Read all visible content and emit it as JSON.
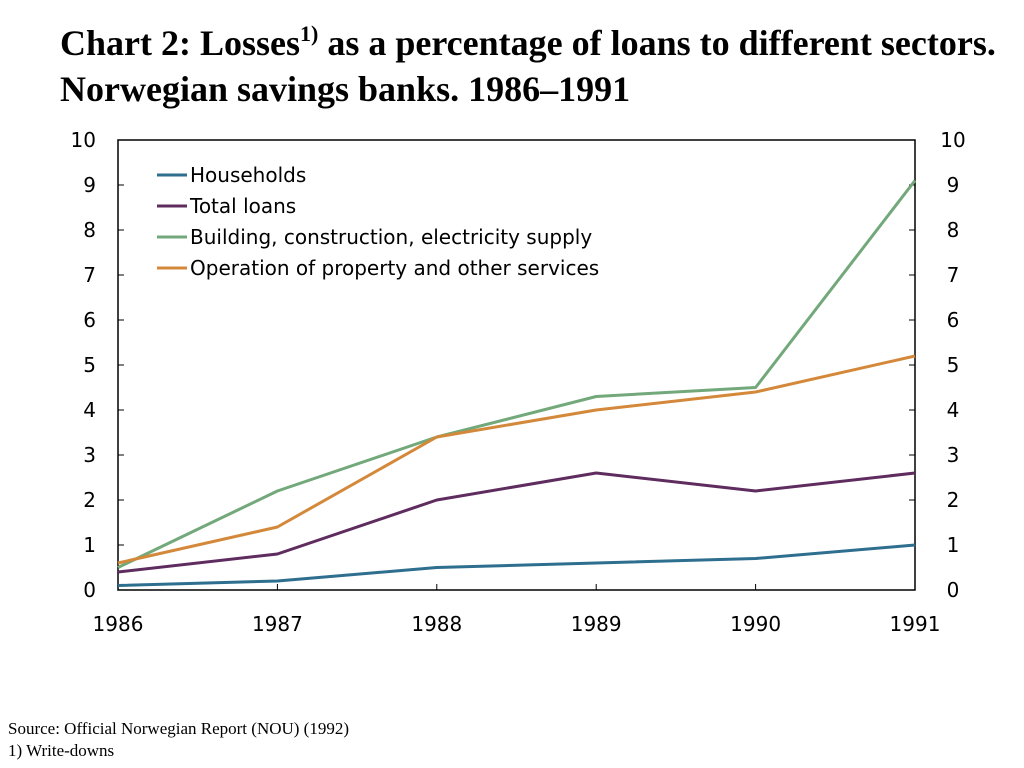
{
  "title": {
    "prefix": "Chart 2: Losses",
    "superscript": "1)",
    "rest": " as a percentage of loans to different sectors. Norwegian savings banks. 1986–1991"
  },
  "footer": {
    "source": "Source: Official Norwegian Report (NOU) (1992)",
    "note": "1) Write-downs"
  },
  "chart_data": {
    "type": "line",
    "x": [
      "1986",
      "1987",
      "1988",
      "1989",
      "1990",
      "1991"
    ],
    "ylim": [
      0,
      10
    ],
    "yticks": [
      0,
      1,
      2,
      3,
      4,
      5,
      6,
      7,
      8,
      9,
      10
    ],
    "secondary_yaxis": true,
    "grid": false,
    "legend_position": "top-left",
    "series": [
      {
        "name": "Households",
        "color": "#2e6e8e",
        "values": [
          0.1,
          0.2,
          0.5,
          0.6,
          0.7,
          1.0
        ]
      },
      {
        "name": "Total loans",
        "color": "#5e2c5e",
        "values": [
          0.4,
          0.8,
          2.0,
          2.6,
          2.2,
          2.6
        ]
      },
      {
        "name": "Building, construction, electricity supply",
        "color": "#72a87a",
        "values": [
          0.5,
          2.2,
          3.4,
          4.3,
          4.5,
          9.1
        ]
      },
      {
        "name": "Operation of property and other services",
        "color": "#d4883a",
        "values": [
          0.6,
          1.4,
          3.4,
          4.0,
          4.4,
          5.2
        ]
      }
    ]
  }
}
